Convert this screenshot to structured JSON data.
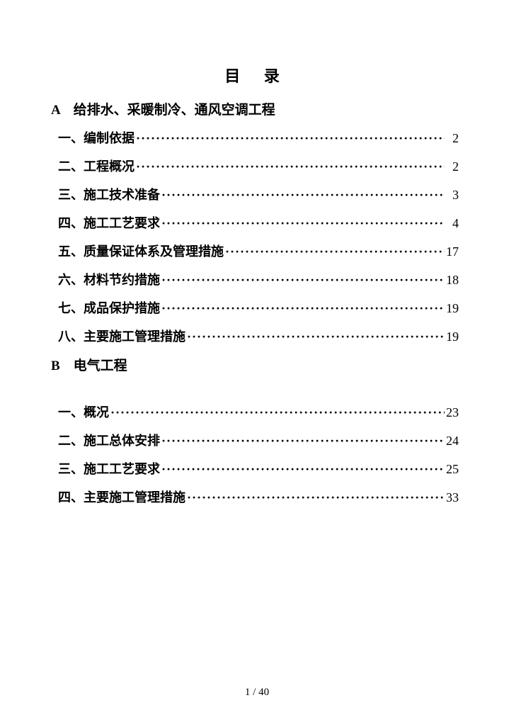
{
  "title": "目 录",
  "sectionA": {
    "heading": "A　给排水、采暖制冷、通风空调工程",
    "items": [
      {
        "num": "一、",
        "label": "编制依据",
        "page": "2"
      },
      {
        "num": "二、",
        "label": "工程概况",
        "page": "2"
      },
      {
        "num": "三、",
        "label": "施工技术准备",
        "page": "3"
      },
      {
        "num": "四、",
        "label": "施工工艺要求",
        "page": "4"
      },
      {
        "num": "五、",
        "label": "质量保证体系及管理措施",
        "page": "17"
      },
      {
        "num": "六、",
        "label": "材料节约措施",
        "page": "18"
      },
      {
        "num": "七、",
        "label": "成品保护措施",
        "page": "19"
      },
      {
        "num": "八、",
        "label": "主要施工管理措施",
        "page": "19"
      }
    ]
  },
  "sectionB": {
    "heading": "B　电气工程",
    "items": [
      {
        "num": "一、",
        "label": "概况",
        "page": "23"
      },
      {
        "num": "二、",
        "label": "施工总体安排",
        "page": "24"
      },
      {
        "num": "三、",
        "label": "施工工艺要求",
        "page": "25"
      },
      {
        "num": "四、",
        "label": "主要施工管理措施",
        "page": "33"
      }
    ]
  },
  "footer": "1 / 40",
  "style": {
    "text_color": "#000000",
    "background_color": "#ffffff",
    "title_fontsize": 22,
    "heading_fontsize": 19,
    "entry_fontsize": 18,
    "footer_fontsize": 15,
    "line_spacing": 14,
    "font_family": "SimSun"
  }
}
